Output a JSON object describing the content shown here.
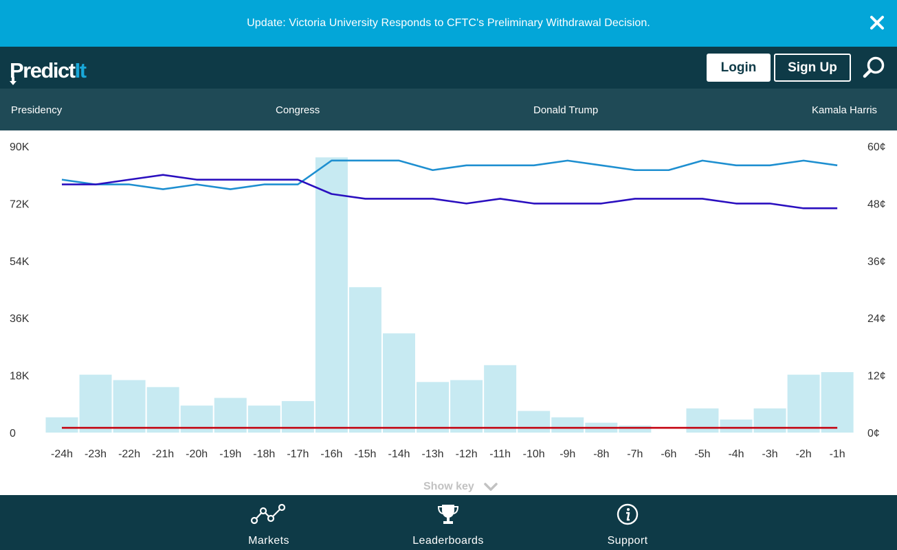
{
  "banner": {
    "text": "Update: Victoria University Responds to CFTC's Preliminary Withdrawal Decision.",
    "close_icon": "close-icon"
  },
  "header": {
    "logo_main": "Predict",
    "logo_accent": "It",
    "login_label": "Login",
    "signup_label": "Sign Up",
    "search_icon": "search-icon"
  },
  "nav": {
    "items": [
      {
        "label": "Presidency"
      },
      {
        "label": "Congress"
      },
      {
        "label": "Donald Trump"
      },
      {
        "label": "Kamala Harris"
      }
    ]
  },
  "colors": {
    "banner": "#03a6d8",
    "header": "#0e3a47",
    "nav": "#1f4a56",
    "bar": "#c7eaf2",
    "series_light": "#1e8fd0",
    "series_dark": "#2a0fbf",
    "series_red": "#c4000e"
  },
  "chart_data": {
    "type": "bar+line",
    "categories": [
      "-24h",
      "-23h",
      "-22h",
      "-21h",
      "-20h",
      "-19h",
      "-18h",
      "-17h",
      "-16h",
      "-15h",
      "-14h",
      "-13h",
      "-12h",
      "-11h",
      "-10h",
      "-9h",
      "-8h",
      "-7h",
      "-6h",
      "-5h",
      "-4h",
      "-3h",
      "-2h",
      "-1h"
    ],
    "left_axis": {
      "ticks": [
        "90K",
        "72K",
        "54K",
        "36K",
        "18K",
        "0"
      ],
      "range": [
        0,
        90000
      ]
    },
    "right_axis": {
      "ticks": [
        "60¢",
        "48¢",
        "36¢",
        "24¢",
        "12¢",
        "0¢"
      ],
      "range": [
        0,
        60
      ]
    },
    "grid": false,
    "bars": [
      4800,
      18200,
      16500,
      14300,
      8500,
      10900,
      8500,
      9900,
      86500,
      45700,
      31200,
      15900,
      16500,
      21200,
      6800,
      4800,
      3100,
      2200,
      0,
      7600,
      4100,
      7600,
      18200,
      19000
    ],
    "series": [
      {
        "values": [
          53,
          52,
          52,
          51,
          52,
          51,
          52,
          52,
          57,
          57,
          57,
          55,
          56,
          56,
          56,
          57,
          56,
          55,
          55,
          57,
          56,
          56,
          57,
          56
        ]
      },
      {
        "values": [
          52,
          52,
          53,
          54,
          53,
          53,
          53,
          53,
          50,
          49,
          49,
          49,
          48,
          49,
          48,
          48,
          48,
          49,
          49,
          49,
          48,
          48,
          47,
          47
        ]
      },
      {
        "values": [
          1,
          1,
          1,
          1,
          1,
          1,
          1,
          1,
          1,
          1,
          1,
          1,
          1,
          1,
          1,
          1,
          1,
          1,
          1,
          1,
          1,
          1,
          1,
          1
        ]
      }
    ]
  },
  "show_key": {
    "label": "Show key",
    "icon": "chevron-down-icon"
  },
  "bottom_nav": {
    "items": [
      {
        "label": "Markets",
        "icon": "markets-icon"
      },
      {
        "label": "Leaderboards",
        "icon": "trophy-icon"
      },
      {
        "label": "Support",
        "icon": "info-icon"
      }
    ]
  }
}
